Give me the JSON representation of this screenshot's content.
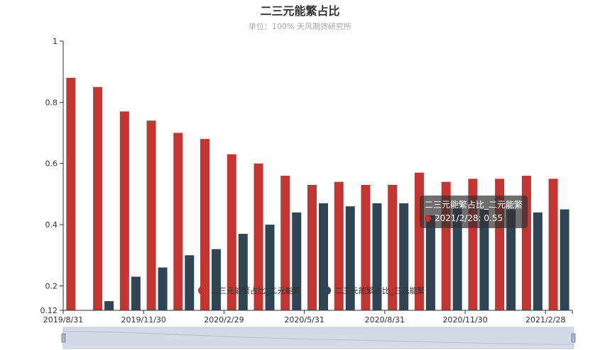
{
  "chart_data": {
    "type": "bar",
    "title": "二三元能繁占比",
    "subtitle": "单位：100%   天风期货研究所",
    "categories": [
      "2019/8/31",
      "2019/9/30",
      "2019/10/31",
      "2019/11/30",
      "2019/12/31",
      "2020/1/31",
      "2020/2/29",
      "2020/3/31",
      "2020/4/30",
      "2020/5/31",
      "2020/6/30",
      "2020/7/31",
      "2020/8/31",
      "2020/9/30",
      "2020/10/31",
      "2020/11/30",
      "2020/12/31",
      "2021/1/31",
      "2021/2/28"
    ],
    "x_tick_labels": [
      "2019/8/31",
      "2019/11/30",
      "2020/2/29",
      "2020/5/31",
      "2020/8/31",
      "2020/11/30",
      "2021/2/28"
    ],
    "series": [
      {
        "name": "二三元能繁占比_二元能繁",
        "color": "#c23531",
        "values": [
          0.88,
          0.85,
          0.77,
          0.74,
          0.7,
          0.68,
          0.63,
          0.6,
          0.56,
          0.53,
          0.54,
          0.53,
          0.53,
          0.57,
          0.54,
          0.55,
          0.55,
          0.56,
          0.55
        ]
      },
      {
        "name": "二三元能繁占比_三元能繁",
        "color": "#2f4554",
        "values": [
          0.12,
          0.15,
          0.23,
          0.26,
          0.3,
          0.32,
          0.37,
          0.4,
          0.44,
          0.47,
          0.46,
          0.47,
          0.47,
          0.43,
          0.46,
          0.45,
          0.45,
          0.44,
          0.45
        ]
      }
    ],
    "ylim": [
      0.12,
      1
    ],
    "y_ticks": [
      0.12,
      0.2,
      0.4,
      0.6,
      0.8,
      1
    ],
    "legend_position": "bottom-center",
    "grid": false,
    "tooltip": {
      "title": "二三元能繁占比_二元能繁",
      "text": "2021/2/28: 0.55"
    },
    "data_zoom": true
  }
}
